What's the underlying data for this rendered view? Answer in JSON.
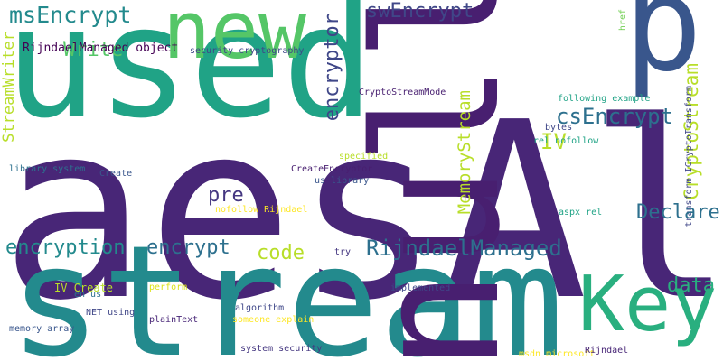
{
  "words": [
    {
      "text": "aesAlg",
      "color": "#482677"
    },
    {
      "text": "stream",
      "color": "#238A8D"
    },
    {
      "text": "used",
      "color": "#20A386"
    },
    {
      "text": "null",
      "color": "#481F70"
    },
    {
      "text": "p",
      "color": "#39568C"
    },
    {
      "text": "new",
      "color": "#55C667"
    },
    {
      "text": "Key",
      "color": "#29AF7F"
    },
    {
      "text": "msEncrypt",
      "color": "#238A8D"
    },
    {
      "text": "swEncrypt",
      "color": "#404788"
    },
    {
      "text": "Write",
      "color": "#55C667"
    },
    {
      "text": "RijndaelManaged object",
      "color": "#440154"
    },
    {
      "text": "encryptor",
      "color": "#3F4788"
    },
    {
      "text": "StreamWriter",
      "color": "#B8DE29"
    },
    {
      "text": "security cryptography",
      "color": "#3F4788"
    },
    {
      "text": "href",
      "color": "#73D055"
    },
    {
      "text": "MemoryStream",
      "color": "#B8DE29"
    },
    {
      "text": "CryptoStreamMode",
      "color": "#481F70"
    },
    {
      "text": "csEncrypt",
      "color": "#2D708E"
    },
    {
      "text": "CryptoStream",
      "color": "#B8DE29"
    },
    {
      "text": "transform ICryptoTransform",
      "color": "#404788"
    },
    {
      "text": "IV",
      "color": "#B8DE29"
    },
    {
      "text": "following example",
      "color": "#20A386"
    },
    {
      "text": "bytes",
      "color": "#3F4788"
    },
    {
      "text": "rel nofollow",
      "color": "#20A386"
    },
    {
      "text": "specified",
      "color": "#B8DE29"
    },
    {
      "text": "library system",
      "color": "#2D708E"
    },
    {
      "text": "Create",
      "color": "#39568C"
    },
    {
      "text": "CreateEncryptor",
      "color": "#481F70"
    },
    {
      "text": "us library",
      "color": "#39568C"
    },
    {
      "text": "pre",
      "color": "#453781"
    },
    {
      "text": "nofollow Rijndael",
      "color": "#FDE725"
    },
    {
      "text": "Declare",
      "color": "#2D708E"
    },
    {
      "text": "aspx rel",
      "color": "#20A386"
    },
    {
      "text": "encryption",
      "color": "#238A8D"
    },
    {
      "text": "encrypt",
      "color": "#2D708E"
    },
    {
      "text": "code",
      "color": "#B8DE29"
    },
    {
      "text": "RijndaelManaged",
      "color": "#2D708E"
    },
    {
      "text": "try",
      "color": "#453781"
    },
    {
      "text": "data",
      "color": "#29AF7F"
    },
    {
      "text": "IV Create",
      "color": "#B8DE29"
    },
    {
      "text": "en us",
      "color": "#2D708E"
    },
    {
      "text": "perform",
      "color": "#DCE319"
    },
    {
      "text": "implemented",
      "color": "#3F4788"
    },
    {
      "text": "algorithm",
      "color": "#3F4788"
    },
    {
      "text": "NET using",
      "color": "#404788"
    },
    {
      "text": "plainText",
      "color": "#482677"
    },
    {
      "text": "someone explain",
      "color": "#FDE725"
    },
    {
      "text": "memory array",
      "color": "#39568C"
    },
    {
      "text": "system security",
      "color": "#453781"
    },
    {
      "text": "msdn microsoft",
      "color": "#FDE725"
    },
    {
      "text": "Rijndael",
      "color": "#482677"
    }
  ]
}
